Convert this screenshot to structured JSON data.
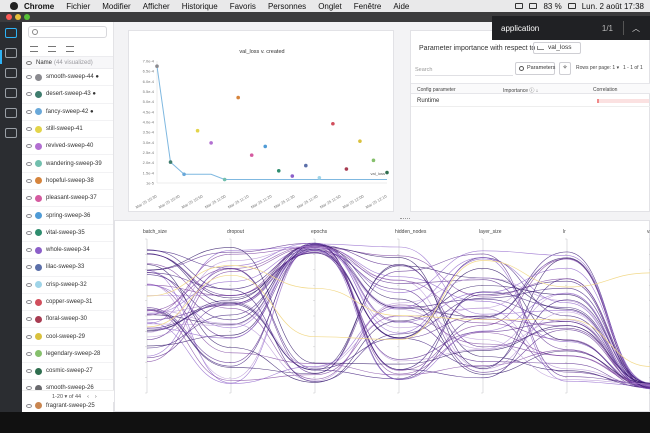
{
  "menubar": {
    "app": "Chrome",
    "items": [
      "Fichier",
      "Modifier",
      "Afficher",
      "Historique",
      "Favoris",
      "Personnes",
      "Onglet",
      "Fenêtre",
      "Aide"
    ],
    "battery": "83 %",
    "datetime": "Lun. 2 août  17:38"
  },
  "findbar": {
    "query": "application",
    "count": "1/1"
  },
  "sidebar": {
    "search_placeholder": "",
    "header_name": "Name",
    "header_sub": "(44 visualized)",
    "runs": [
      {
        "name": "smooth-sweep-44 ●",
        "color": "#8a8a8f"
      },
      {
        "name": "desert-sweep-43 ●",
        "color": "#3f7d6e"
      },
      {
        "name": "fancy-sweep-42 ●",
        "color": "#69a8d9"
      },
      {
        "name": "still-sweep-41",
        "color": "#e3d44a"
      },
      {
        "name": "revived-sweep-40",
        "color": "#b26fd1"
      },
      {
        "name": "wandering-sweep-39",
        "color": "#72bfae"
      },
      {
        "name": "hopeful-sweep-38",
        "color": "#d6843c"
      },
      {
        "name": "pleasant-sweep-37",
        "color": "#d55ba0"
      },
      {
        "name": "spring-sweep-36",
        "color": "#4f9bd6"
      },
      {
        "name": "vital-sweep-35",
        "color": "#2f8d6f"
      },
      {
        "name": "whole-sweep-34",
        "color": "#8c5fc9"
      },
      {
        "name": "lilac-sweep-33",
        "color": "#5b6fa9"
      },
      {
        "name": "crisp-sweep-32",
        "color": "#9fd4e8"
      },
      {
        "name": "copper-sweep-31",
        "color": "#d14e5c"
      },
      {
        "name": "floral-sweep-30",
        "color": "#a83c52"
      },
      {
        "name": "cool-sweep-29",
        "color": "#d9c13d"
      },
      {
        "name": "legendary-sweep-28",
        "color": "#86c06c"
      },
      {
        "name": "cosmic-sweep-27",
        "color": "#2f6e4f"
      },
      {
        "name": "smooth-sweep-26",
        "color": "#6a6a6e"
      },
      {
        "name": "fragrant-sweep-25",
        "color": "#c98650"
      }
    ],
    "pager": "1-20 ▾ of 44"
  },
  "line_panel": {
    "title": "val_loss v. created",
    "yticks": [
      "7.0e-4",
      "6.5e-4",
      "6.0e-4",
      "5.5e-4",
      "5.0e-4",
      "4.5e-4",
      "4.0e-4",
      "3.5e-4",
      "3.0e-4",
      "2.5e-4",
      "2.0e-4",
      "1.5e-4",
      "1e-5"
    ],
    "xticks": [
      "Mar 25 10:30",
      "Mar 25 10:40",
      "Mar 25 10:50",
      "Mar 25 11:00",
      "Mar 25 11:10",
      "Mar 25 11:20",
      "Mar 25 11:30",
      "Mar 25 11:40",
      "Mar 25 11:50",
      "Mar 25 12:00",
      "Mar 25 12:10"
    ],
    "legend_label": "val_loss"
  },
  "param_panel": {
    "title": "Parameter importance with respect to",
    "metric": "val_loss",
    "search_placeholder": "Search",
    "parameters_button": "Parameters",
    "rows_per_page": "Rows per page: 1 ▾",
    "range": "1 - 1 of 1",
    "columns": [
      "Config parameter",
      "Importance ⓘ ↓",
      "Correlation"
    ],
    "rows": [
      {
        "param": "Runtime",
        "correlation": -0.02
      }
    ]
  },
  "parallel_panel": {
    "axes": [
      "batch_size",
      "dropout",
      "epochs",
      "hidden_nodes",
      "layer_size",
      "lr",
      "val_lo"
    ]
  },
  "chart_data": [
    {
      "type": "scatter",
      "title": "val_loss v. created",
      "xlabel": "",
      "ylabel": "",
      "points": [
        {
          "x": "Mar 25 10:30",
          "y": 0.00067
        },
        {
          "x": "Mar 25 10:33",
          "y": 0.00012
        },
        {
          "x": "Mar 25 10:36",
          "y": 5e-05
        },
        {
          "x": "Mar 25 10:40",
          "y": 0.0003
        },
        {
          "x": "Mar 25 10:43",
          "y": 0.00023
        },
        {
          "x": "Mar 25 10:47",
          "y": 2e-05
        },
        {
          "x": "Mar 25 10:52",
          "y": 0.00049
        },
        {
          "x": "Mar 25 10:56",
          "y": 0.00016
        },
        {
          "x": "Mar 25 11:00",
          "y": 0.00021
        },
        {
          "x": "Mar 25 11:05",
          "y": 7e-05
        },
        {
          "x": "Mar 25 11:12",
          "y": 4e-05
        },
        {
          "x": "Mar 25 11:20",
          "y": 0.0001
        },
        {
          "x": "Mar 25 11:30",
          "y": 3e-05
        },
        {
          "x": "Mar 25 11:38",
          "y": 0.00034
        },
        {
          "x": "Mar 25 11:45",
          "y": 8e-05
        },
        {
          "x": "Mar 25 11:50",
          "y": 0.00024
        },
        {
          "x": "Mar 25 11:58",
          "y": 0.00013
        },
        {
          "x": "Mar 25 12:05",
          "y": 6e-05
        }
      ]
    }
  ]
}
